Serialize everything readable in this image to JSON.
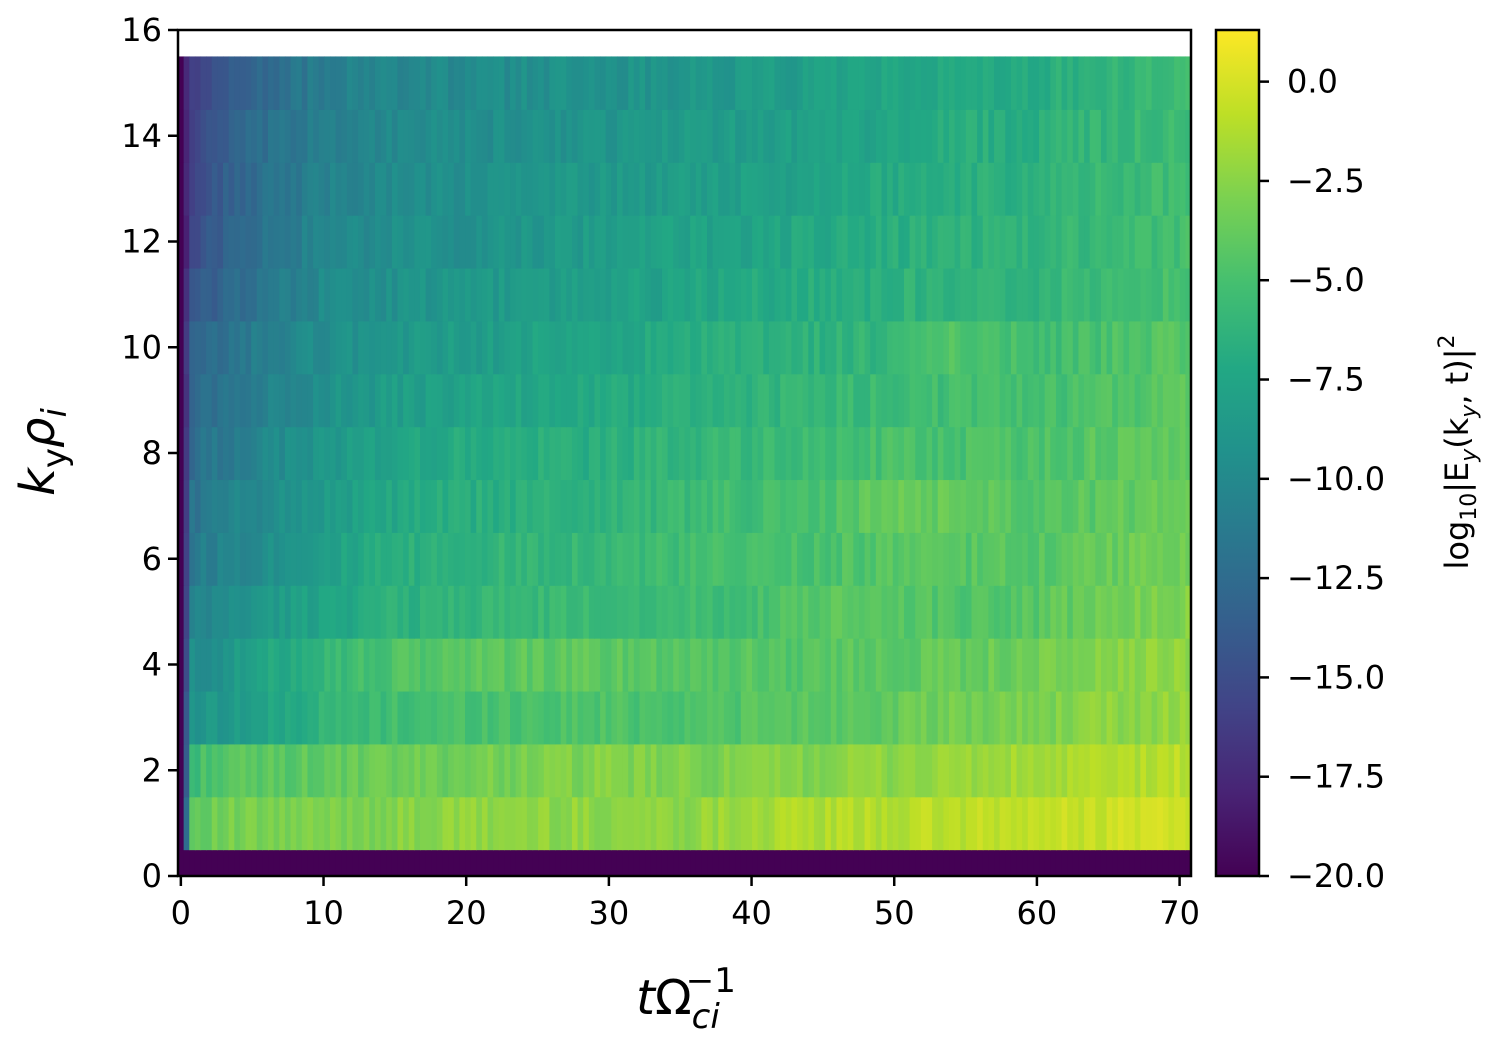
{
  "chart_data": {
    "type": "heatmap",
    "colormap": "viridis",
    "xlabel": "tΩ_ci^-1",
    "xlabel_parts": {
      "base": "t",
      "symbol": "Ω",
      "sub": "ci",
      "sup": "−1"
    },
    "ylabel": "k_y ρ_i",
    "ylabel_parts": {
      "k": "k",
      "k_sub": "y",
      "rho": "ρ",
      "rho_sub": "i"
    },
    "colorbar_label": "log10|E_y(k_y, t)|^2",
    "colorbar_label_parts": {
      "log": "log",
      "log_sub": "10",
      "mid": "|E",
      "e_sub": "y",
      "args_open": "(k",
      "k_sub": "y",
      "args_close": ", t)|",
      "sup": "2"
    },
    "xlim": [
      -0.2,
      70.8
    ],
    "ylim": [
      0,
      16
    ],
    "clim": [
      -20.0,
      1.3
    ],
    "x_ticks": [
      0,
      10,
      20,
      30,
      40,
      50,
      60,
      70
    ],
    "x_tick_labels": [
      "0",
      "10",
      "20",
      "30",
      "40",
      "50",
      "60",
      "70"
    ],
    "y_ticks": [
      0,
      2,
      4,
      6,
      8,
      10,
      12,
      14,
      16
    ],
    "y_tick_labels": [
      "0",
      "2",
      "4",
      "6",
      "8",
      "10",
      "12",
      "14",
      "16"
    ],
    "cbar_ticks": [
      0.0,
      -2.5,
      -5.0,
      -7.5,
      -10.0,
      -12.5,
      -15.0,
      -17.5,
      -20.0
    ],
    "cbar_tick_labels": [
      "0.0",
      "−2.5",
      "−5.0",
      "−7.5",
      "−10.0",
      "−12.5",
      "−15.0",
      "−17.5",
      "−20.0"
    ],
    "ky_bands": [
      0,
      1,
      2,
      3,
      4,
      5,
      6,
      7,
      8,
      9,
      10,
      11,
      12,
      13,
      14,
      15
    ],
    "band_half_width": 0.5,
    "time_samples": [
      0.2,
      0.6,
      1.5,
      3,
      5,
      10,
      15,
      20,
      25,
      30,
      35,
      40,
      45,
      50,
      55,
      60,
      63,
      66,
      70.8
    ],
    "values": [
      [
        -20,
        -20,
        -20,
        -20,
        -20,
        -20,
        -20,
        -20,
        -20,
        -20,
        -20,
        -20,
        -20,
        -20,
        -20,
        -20,
        -20,
        -20,
        -20
      ],
      [
        -20,
        -3.8,
        -3.6,
        -3.3,
        -3.2,
        -3.0,
        -2.7,
        -2.3,
        -2.3,
        -2.3,
        -2.3,
        -1.6,
        -1.3,
        -1.1,
        -0.9,
        -0.7,
        -0.5,
        -0.3,
        0.0
      ],
      [
        -20,
        -6.5,
        -4.8,
        -4.5,
        -4.3,
        -4.0,
        -3.6,
        -3.3,
        -3.0,
        -2.8,
        -3.0,
        -2.9,
        -2.6,
        -2.3,
        -2.0,
        -1.8,
        -1.5,
        -1.3,
        -0.9
      ],
      [
        -20,
        -9.0,
        -8.8,
        -8.5,
        -8.2,
        -6.2,
        -5.3,
        -4.9,
        -4.8,
        -4.7,
        -4.7,
        -4.4,
        -4.2,
        -3.8,
        -3.3,
        -3.0,
        -2.6,
        -2.4,
        -2.1
      ],
      [
        -20,
        -9.8,
        -9.5,
        -9.0,
        -8.0,
        -5.8,
        -4.8,
        -4.1,
        -4.1,
        -4.1,
        -4.2,
        -4.4,
        -4.3,
        -4.0,
        -3.7,
        -3.4,
        -2.9,
        -2.6,
        -2.3
      ],
      [
        -20,
        -11.0,
        -10.5,
        -9.8,
        -9.0,
        -7.5,
        -6.5,
        -6.0,
        -5.8,
        -5.6,
        -5.4,
        -5.2,
        -4.3,
        -4.3,
        -4.5,
        -4.3,
        -3.7,
        -3.2,
        -2.7
      ],
      [
        -20,
        -11.5,
        -11.0,
        -10.5,
        -9.8,
        -8.0,
        -6.8,
        -6.3,
        -5.9,
        -5.7,
        -5.4,
        -5.1,
        -4.8,
        -4.4,
        -4.4,
        -4.3,
        -4.0,
        -3.6,
        -3.2
      ],
      [
        -20,
        -12.0,
        -11.5,
        -10.8,
        -10.0,
        -8.5,
        -7.3,
        -6.8,
        -6.5,
        -6.2,
        -5.6,
        -5.3,
        -5.0,
        -3.6,
        -3.9,
        -4.3,
        -4.2,
        -3.9,
        -3.6
      ],
      [
        -20,
        -12.5,
        -12.0,
        -11.3,
        -10.5,
        -8.8,
        -7.6,
        -7.0,
        -6.8,
        -6.6,
        -6.0,
        -5.8,
        -5.4,
        -5.0,
        -4.9,
        -4.6,
        -4.4,
        -4.1,
        -3.8
      ],
      [
        -20,
        -13.0,
        -12.5,
        -11.8,
        -11.0,
        -9.3,
        -8.3,
        -7.8,
        -7.4,
        -7.2,
        -6.6,
        -6.3,
        -5.9,
        -5.5,
        -5.3,
        -5.2,
        -4.8,
        -4.5,
        -4.2
      ],
      [
        -20,
        -13.5,
        -13.0,
        -12.2,
        -11.2,
        -9.6,
        -8.8,
        -8.3,
        -7.8,
        -7.6,
        -7.0,
        -6.6,
        -6.4,
        -5.9,
        -4.5,
        -5.3,
        -5.1,
        -4.8,
        -4.4
      ],
      [
        -20,
        -14.5,
        -14.0,
        -13.0,
        -11.8,
        -10.0,
        -9.3,
        -8.8,
        -8.4,
        -8.0,
        -7.6,
        -7.2,
        -6.7,
        -6.4,
        -6.0,
        -6.2,
        -5.6,
        -5.2,
        -4.9
      ],
      [
        -20,
        -15.0,
        -14.5,
        -13.5,
        -12.2,
        -10.3,
        -9.6,
        -9.3,
        -8.8,
        -8.3,
        -7.8,
        -7.6,
        -7.2,
        -6.8,
        -6.3,
        -6.4,
        -5.8,
        -5.5,
        -5.2
      ],
      [
        -20,
        -15.5,
        -15.0,
        -13.8,
        -12.5,
        -10.6,
        -9.8,
        -9.5,
        -9.0,
        -8.6,
        -8.2,
        -8.0,
        -7.5,
        -7.0,
        -6.6,
        -6.3,
        -6.0,
        -5.7,
        -5.4
      ],
      [
        -20,
        -15.8,
        -15.2,
        -14.0,
        -12.7,
        -10.8,
        -10.0,
        -9.7,
        -9.3,
        -8.9,
        -8.5,
        -8.2,
        -7.8,
        -7.4,
        -6.8,
        -6.6,
        -6.2,
        -5.8,
        -5.5
      ],
      [
        -20,
        -16.0,
        -15.5,
        -14.2,
        -13.0,
        -11.0,
        -10.2,
        -9.9,
        -9.5,
        -9.2,
        -8.8,
        -8.5,
        -8.1,
        -7.6,
        -7.0,
        -6.8,
        -6.4,
        -6.0,
        -5.7
      ]
    ]
  }
}
